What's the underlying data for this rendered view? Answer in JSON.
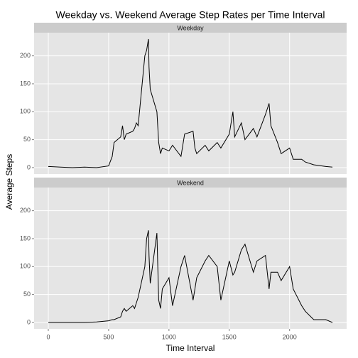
{
  "chart_data": {
    "type": "line",
    "title": "Weekday vs. Weekend Average Step Rates per Time Interval",
    "x_label": "Time Interval",
    "y_label": "Average Steps",
    "color": "#000000",
    "grid": true,
    "xlim": [
      -117.75,
      2472.75
    ],
    "xticks": [
      0,
      500,
      1000,
      1500,
      2000
    ],
    "ylim": [
      -11.5,
      241.5
    ],
    "yticks": [
      0,
      50,
      100,
      150,
      200
    ],
    "x": [
      0,
      100,
      200,
      300,
      400,
      500,
      530,
      545,
      600,
      615,
      630,
      645,
      700,
      715,
      730,
      745,
      800,
      815,
      830,
      835,
      845,
      900,
      915,
      930,
      945,
      1000,
      1030,
      1100,
      1130,
      1200,
      1215,
      1230,
      1300,
      1330,
      1400,
      1430,
      1500,
      1530,
      1545,
      1600,
      1630,
      1700,
      1730,
      1800,
      1830,
      1845,
      1900,
      1930,
      2000,
      2030,
      2100,
      2130,
      2200,
      2300,
      2355
    ],
    "series": [
      {
        "name": "Weekday",
        "values": [
          2,
          1,
          0,
          1,
          0,
          3,
          20,
          45,
          55,
          75,
          50,
          60,
          65,
          70,
          80,
          75,
          200,
          210,
          230,
          180,
          140,
          100,
          45,
          25,
          35,
          30,
          40,
          20,
          60,
          65,
          35,
          25,
          40,
          30,
          45,
          35,
          60,
          100,
          55,
          80,
          50,
          70,
          55,
          95,
          115,
          75,
          45,
          25,
          35,
          15,
          15,
          10,
          5,
          2,
          1
        ]
      },
      {
        "name": "Weekend",
        "values": [
          0,
          0,
          0,
          0,
          1,
          3,
          5,
          5,
          10,
          20,
          25,
          20,
          30,
          25,
          35,
          45,
          100,
          150,
          165,
          120,
          70,
          160,
          40,
          25,
          60,
          80,
          30,
          100,
          120,
          40,
          60,
          80,
          110,
          120,
          100,
          40,
          110,
          85,
          90,
          130,
          140,
          90,
          110,
          120,
          60,
          90,
          90,
          75,
          100,
          60,
          30,
          20,
          5,
          5,
          0
        ]
      }
    ]
  }
}
